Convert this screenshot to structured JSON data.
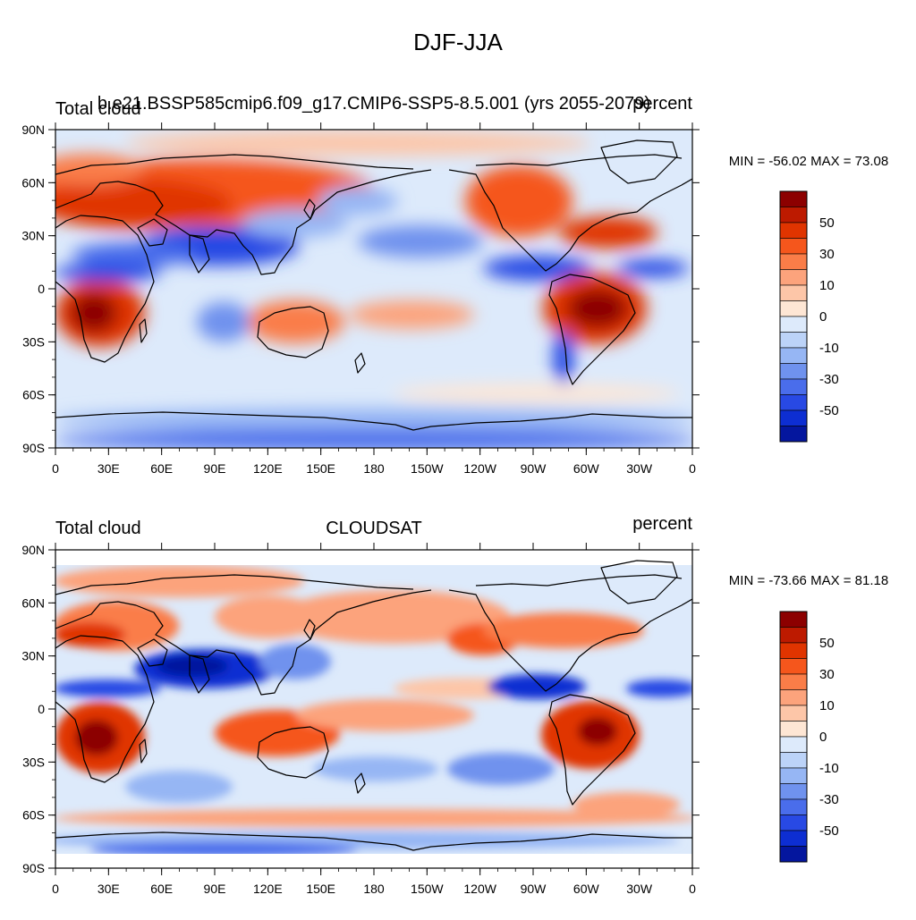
{
  "figure": {
    "title": "DJF-JJA"
  },
  "panels": [
    {
      "left_label": "Total cloud",
      "center_label": "b.e21.BSSP585cmip6.f09_g17.CMIP6-SSP5-8.5.001 (yrs 2055-2079)",
      "right_label": "percent",
      "stats": "MIN = -56.02 MAX =  73.08"
    },
    {
      "left_label": "Total cloud",
      "center_label": "CLOUDSAT",
      "right_label": "percent",
      "stats": "MIN = -73.66 MAX =  81.18"
    }
  ],
  "axes": {
    "lat_labels": [
      "90N",
      "60N",
      "30N",
      "0",
      "30S",
      "60S",
      "90S"
    ],
    "lon_labels": [
      "0",
      "30E",
      "60E",
      "90E",
      "120E",
      "150E",
      "180",
      "150W",
      "120W",
      "90W",
      "60W",
      "30W",
      "0"
    ]
  },
  "colorbar": {
    "labels": [
      "50",
      "30",
      "10",
      "0",
      "-10",
      "-30",
      "-50"
    ],
    "colors": [
      "#8c0000",
      "#bd1a00",
      "#e03400",
      "#f5561c",
      "#fa7d48",
      "#fca37c",
      "#fdc6a8",
      "#fee6d4",
      "#ddeafb",
      "#bcd3f8",
      "#96b6f4",
      "#6f92ee",
      "#4a6deb",
      "#2849e4",
      "#0d2ed2",
      "#04169e"
    ]
  },
  "chart_data": [
    {
      "type": "heatmap",
      "title": "DJF-JJA",
      "subtitle": "b.e21.BSSP585cmip6.f09_g17.CMIP6-SSP5-8.5.001 (yrs 2055-2079)",
      "variable": "Total cloud",
      "units": "percent",
      "min": -56.02,
      "max": 73.08,
      "xlim": [
        0,
        360
      ],
      "ylim": [
        -90,
        90
      ],
      "colorbar_labels": [
        50,
        30,
        10,
        0,
        -10,
        -30,
        -50
      ]
    },
    {
      "type": "heatmap",
      "title": "DJF-JJA",
      "subtitle": "CLOUDSAT",
      "variable": "Total cloud",
      "units": "percent",
      "min": -73.66,
      "max": 81.18,
      "xlim": [
        0,
        360
      ],
      "ylim": [
        -90,
        90
      ],
      "colorbar_labels": [
        50,
        30,
        10,
        0,
        -10,
        -30,
        -50
      ]
    }
  ]
}
